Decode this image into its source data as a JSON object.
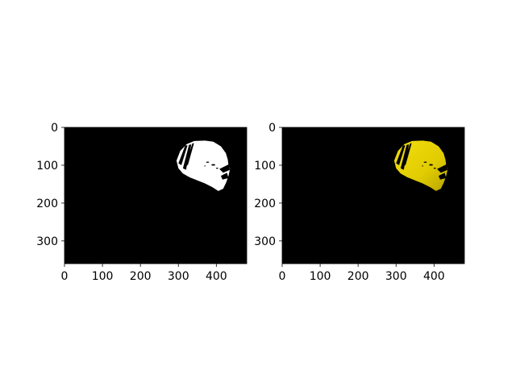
{
  "figure": {
    "background": "#ffffff",
    "panels": 2
  },
  "chart_data": [
    {
      "type": "heatmap",
      "title": "",
      "xlabel": "",
      "ylabel": "",
      "image_size": [
        480,
        360
      ],
      "xlim": [
        0,
        480
      ],
      "ylim": [
        360,
        0
      ],
      "y_inverted": true,
      "xticks": [
        0,
        100,
        200,
        300,
        400
      ],
      "yticks": [
        0,
        100,
        200,
        300
      ],
      "grid": false,
      "background_color": "#000000",
      "mask_color": "#ffffff",
      "content": "binary mask"
    },
    {
      "type": "heatmap",
      "title": "",
      "xlabel": "",
      "ylabel": "",
      "image_size": [
        480,
        360
      ],
      "xlim": [
        0,
        480
      ],
      "ylim": [
        360,
        0
      ],
      "y_inverted": true,
      "xticks": [
        0,
        100,
        200,
        300,
        400
      ],
      "yticks": [
        0,
        100,
        200,
        300
      ],
      "grid": false,
      "background_color": "#000000",
      "mask_color": "#e8d400",
      "content": "masked yellow image"
    }
  ]
}
